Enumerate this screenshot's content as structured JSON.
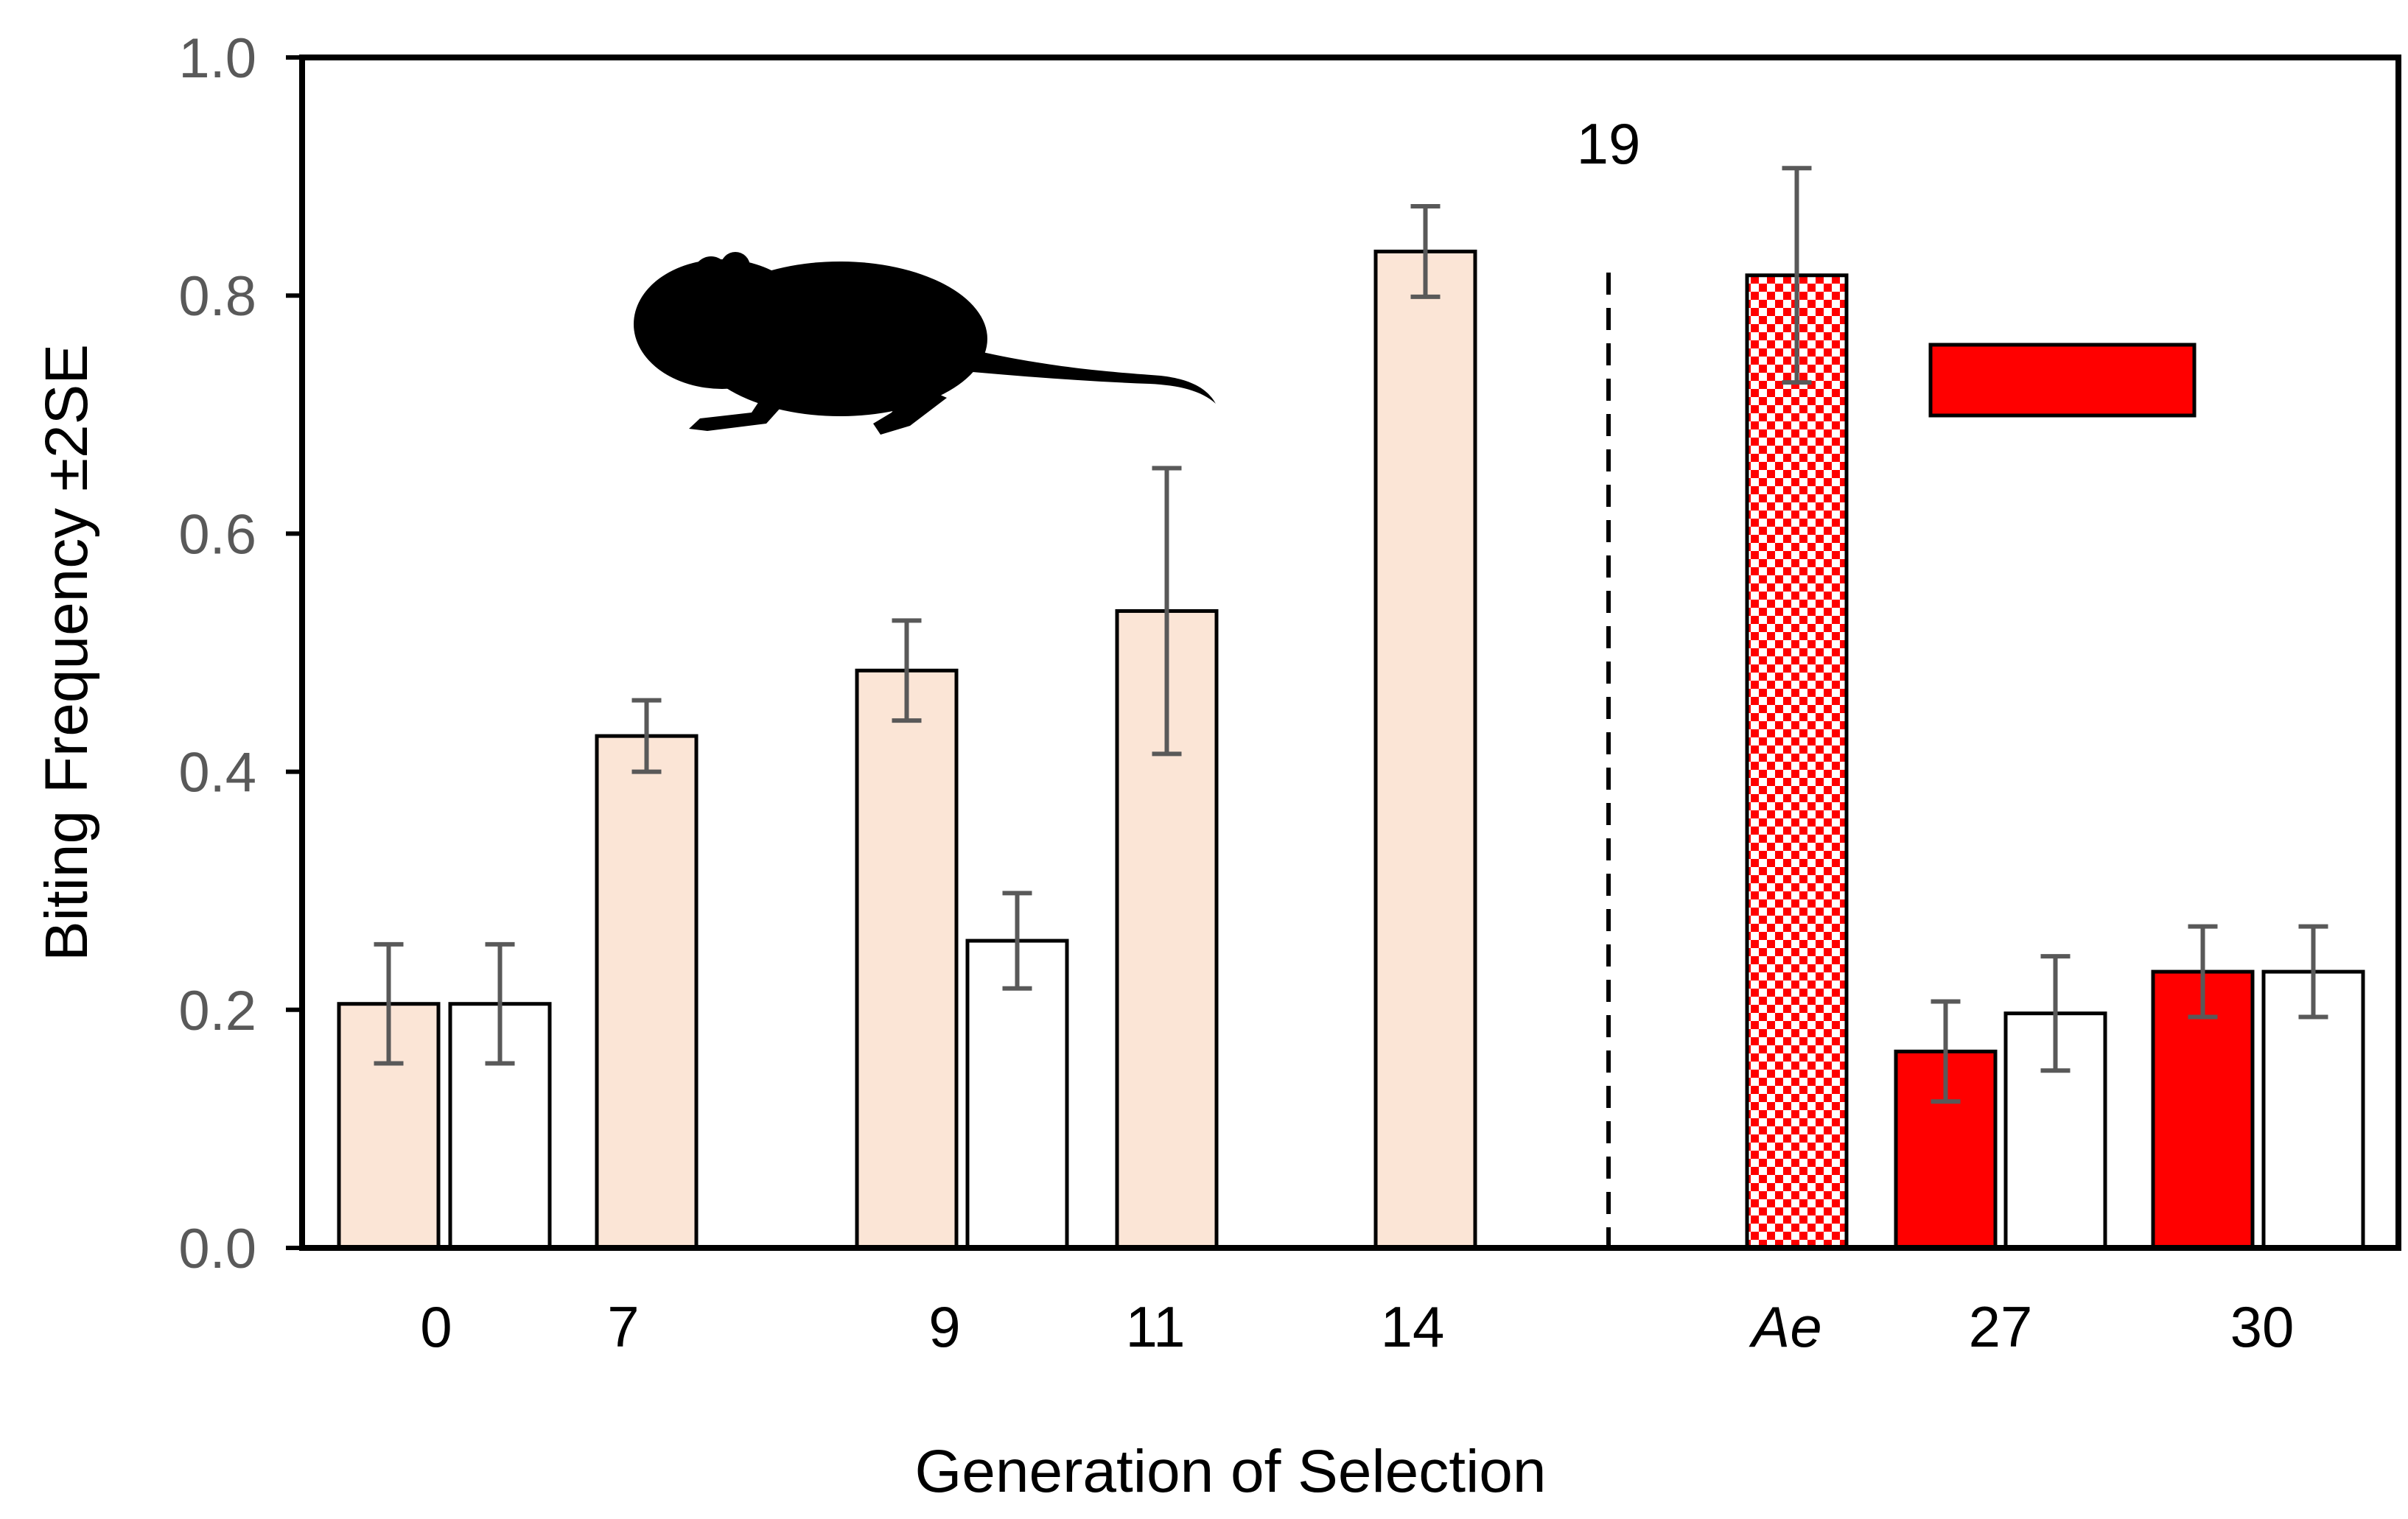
{
  "chart_data": {
    "type": "bar",
    "title": "",
    "xlabel": "Generation of Selection",
    "ylabel": "Biting Frequency ±2SE",
    "ylim": [
      0,
      1.0
    ],
    "yticks": [
      "0.0",
      "0.2",
      "0.4",
      "0.6",
      "0.8",
      "1.0"
    ],
    "grid": false,
    "categories": [
      "0",
      "7",
      "9",
      "11",
      "14",
      "Ae",
      "27",
      "30"
    ],
    "divider_label": "19",
    "colors": {
      "selected": "#fbe5d6",
      "control": "#ffffff",
      "ae_check": "#ff0000",
      "relaxed": "#ff0000",
      "outline": "#000000",
      "errorbar": "#595959"
    },
    "bars": [
      {
        "category": "0",
        "group": "selected",
        "value": 0.205,
        "err": 0.05
      },
      {
        "category": "0",
        "group": "control",
        "value": 0.205,
        "err": 0.05
      },
      {
        "category": "7",
        "group": "selected",
        "value": 0.43,
        "err": 0.03
      },
      {
        "category": "9",
        "group": "selected",
        "value": 0.485,
        "err": 0.042
      },
      {
        "category": "9",
        "group": "control",
        "value": 0.258,
        "err": 0.04
      },
      {
        "category": "11",
        "group": "selected",
        "value": 0.535,
        "err": 0.12
      },
      {
        "category": "14",
        "group": "selected",
        "value": 0.837,
        "err": 0.038
      },
      {
        "category": "Ae",
        "group": "ae_check",
        "value": 0.817,
        "err": 0.09
      },
      {
        "category": "27",
        "group": "relaxed",
        "value": 0.165,
        "err": 0.042
      },
      {
        "category": "27",
        "group": "control",
        "value": 0.197,
        "err": 0.048
      },
      {
        "category": "30",
        "group": "relaxed",
        "value": 0.232,
        "err": 0.038
      },
      {
        "category": "30",
        "group": "control",
        "value": 0.232,
        "err": 0.038
      }
    ],
    "legend": [
      {
        "symbol": "red-rectangle",
        "label": ""
      }
    ]
  },
  "icons": {
    "rodent": "rat-silhouette-icon"
  }
}
